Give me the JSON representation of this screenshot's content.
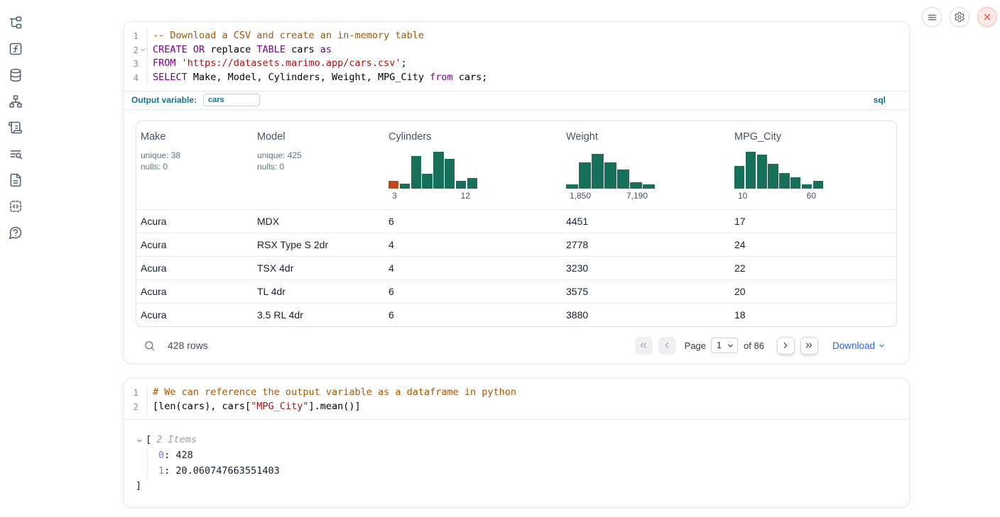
{
  "colors": {
    "accent_teal": "#0e7490",
    "keyword_purple": "#770088",
    "comment_brown": "#aa5500",
    "string_red": "#aa1111",
    "hist_green": "#17705a",
    "hist_orange": "#c14b16",
    "link_blue": "#2563eb"
  },
  "sidebar": {
    "items": [
      {
        "icon": "file-tree-icon"
      },
      {
        "icon": "function-icon"
      },
      {
        "icon": "database-icon"
      },
      {
        "icon": "dependency-graph-icon"
      },
      {
        "icon": "scroll-icon"
      },
      {
        "icon": "logs-search-icon"
      },
      {
        "icon": "document-icon"
      },
      {
        "icon": "snippets-icon"
      },
      {
        "icon": "help-icon"
      }
    ]
  },
  "topbar": {
    "buttons": [
      {
        "name": "menu-button",
        "icon": "menu-icon"
      },
      {
        "name": "settings-button",
        "icon": "gear-icon"
      },
      {
        "name": "close-button",
        "icon": "close-icon"
      }
    ]
  },
  "cell1": {
    "language_badge": "sql",
    "output_variable_label": "Output variable:",
    "output_variable_value": "cars",
    "code": [
      {
        "num": "1",
        "fold": false,
        "tokens": [
          {
            "type": "comment",
            "text": "-- Download a CSV and create an in-memory table"
          }
        ]
      },
      {
        "num": "2",
        "fold": true,
        "tokens": [
          {
            "type": "keyword",
            "text": "CREATE"
          },
          {
            "type": "plain",
            "text": " "
          },
          {
            "type": "keyword",
            "text": "OR"
          },
          {
            "type": "plain",
            "text": " replace "
          },
          {
            "type": "keyword",
            "text": "TABLE"
          },
          {
            "type": "plain",
            "text": " cars "
          },
          {
            "type": "keyword",
            "text": "as"
          }
        ]
      },
      {
        "num": "3",
        "fold": false,
        "tokens": [
          {
            "type": "keyword",
            "text": "FROM"
          },
          {
            "type": "plain",
            "text": " "
          },
          {
            "type": "string",
            "text": "'https://datasets.marimo.app/cars.csv'"
          },
          {
            "type": "plain",
            "text": ";"
          }
        ]
      },
      {
        "num": "4",
        "fold": false,
        "tokens": [
          {
            "type": "keyword",
            "text": "SELECT"
          },
          {
            "type": "plain",
            "text": " Make, Model, Cylinders, Weight, MPG_City "
          },
          {
            "type": "keyword",
            "text": "from"
          },
          {
            "type": "plain",
            "text": " cars;"
          }
        ]
      }
    ]
  },
  "table": {
    "columns": [
      {
        "name": "Make",
        "stats": [
          "unique: 38",
          "nulls: 0"
        ]
      },
      {
        "name": "Model",
        "stats": [
          "unique: 425",
          "nulls: 0"
        ]
      },
      {
        "name": "Cylinders",
        "histogram": {
          "min_label": "3",
          "max_label": "12",
          "highlight_index": 0,
          "bars": [
            0.22,
            0.13,
            0.88,
            0.4,
            1.0,
            0.8,
            0.22,
            0.28
          ]
        }
      },
      {
        "name": "Weight",
        "histogram": {
          "min_label": "1,850",
          "max_label": "7,190",
          "highlight_index": -1,
          "bars": [
            0.12,
            0.72,
            0.95,
            0.72,
            0.52,
            0.17,
            0.12
          ]
        }
      },
      {
        "name": "MPG_City",
        "histogram": {
          "min_label": "10",
          "max_label": "60",
          "highlight_index": -1,
          "bars": [
            0.62,
            1.0,
            0.92,
            0.68,
            0.42,
            0.3,
            0.12,
            0.22
          ]
        }
      }
    ],
    "rows": [
      [
        "Acura",
        "MDX",
        "6",
        "4451",
        "17"
      ],
      [
        "Acura",
        "RSX Type S 2dr",
        "4",
        "2778",
        "24"
      ],
      [
        "Acura",
        "TSX 4dr",
        "4",
        "3230",
        "22"
      ],
      [
        "Acura",
        "TL 4dr",
        "6",
        "3575",
        "20"
      ],
      [
        "Acura",
        "3.5 RL 4dr",
        "6",
        "3880",
        "18"
      ]
    ],
    "footer": {
      "row_count": "428 rows",
      "page_label": "Page",
      "page_value": "1",
      "of_label": "of 86",
      "download_label": "Download"
    }
  },
  "cell2": {
    "code": [
      {
        "num": "1",
        "fold": false,
        "tokens": [
          {
            "type": "comment",
            "text": "# We can reference the output variable as a dataframe in python"
          }
        ]
      },
      {
        "num": "2",
        "fold": false,
        "tokens": [
          {
            "type": "plain",
            "text": "[len(cars), cars["
          },
          {
            "type": "string",
            "text": "\"MPG_City\""
          },
          {
            "type": "plain",
            "text": "].mean()]"
          }
        ]
      }
    ],
    "output": {
      "open_bracket": "[",
      "items_label": "2 Items",
      "entries": [
        {
          "key": "0",
          "value": "428"
        },
        {
          "key": "1",
          "value": "20.060747663551403"
        }
      ],
      "close_bracket": "]"
    }
  }
}
